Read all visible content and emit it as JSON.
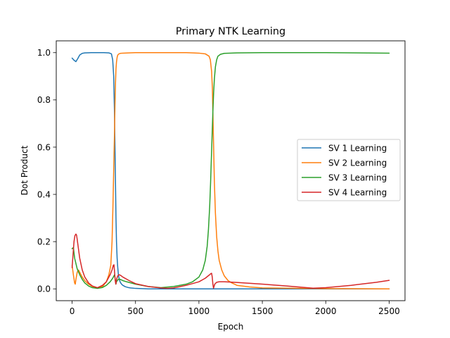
{
  "chart_data": {
    "type": "line",
    "title": "Primary NTK Learning",
    "xlabel": "Epoch",
    "ylabel": "Dot Product",
    "xlim": [
      -125,
      2625
    ],
    "ylim": [
      -0.05,
      1.05
    ],
    "xticks": [
      0,
      500,
      1000,
      1500,
      2000,
      2500
    ],
    "yticks": [
      0.0,
      0.2,
      0.4,
      0.6,
      0.8,
      1.0
    ],
    "xtick_labels": [
      "0",
      "500",
      "1000",
      "1500",
      "2000",
      "2500"
    ],
    "ytick_labels": [
      "0.0",
      "0.2",
      "0.4",
      "0.6",
      "0.8",
      "1.0"
    ],
    "grid": false,
    "legend_position": "center-right",
    "series": [
      {
        "name": "SV 1 Learning",
        "color": "#1f77b4",
        "x": [
          0,
          15,
          30,
          45,
          60,
          80,
          100,
          150,
          200,
          250,
          290,
          310,
          320,
          328,
          334,
          338,
          342,
          346,
          350,
          355,
          360,
          365,
          370,
          375,
          380,
          390,
          400,
          420,
          440,
          460,
          500,
          550,
          600,
          700,
          800,
          900,
          1000,
          1100,
          1200,
          1500,
          2000,
          2500
        ],
        "y": [
          0.977,
          0.968,
          0.962,
          0.975,
          0.99,
          0.997,
          0.999,
          1.0,
          1.0,
          1.0,
          0.999,
          0.995,
          0.97,
          0.9,
          0.75,
          0.6,
          0.45,
          0.3,
          0.2,
          0.13,
          0.09,
          0.06,
          0.045,
          0.035,
          0.028,
          0.02,
          0.015,
          0.009,
          0.006,
          0.004,
          0.002,
          0.001,
          0.0,
          0.0,
          0.0,
          0.0,
          0.0,
          0.0,
          0.0,
          0.0,
          0.0,
          0.0
        ]
      },
      {
        "name": "SV 2 Learning",
        "color": "#ff7f0e",
        "x": [
          0,
          10,
          20,
          25,
          30,
          40,
          50,
          60,
          80,
          100,
          130,
          160,
          200,
          240,
          270,
          290,
          305,
          315,
          322,
          328,
          334,
          338,
          342,
          346,
          350,
          355,
          360,
          370,
          380,
          400,
          450,
          500,
          600,
          700,
          800,
          900,
          1000,
          1050,
          1080,
          1090,
          1100,
          1106,
          1110,
          1116,
          1122,
          1130,
          1140,
          1150,
          1160,
          1180,
          1200,
          1230,
          1260,
          1300,
          1400,
          1500,
          2000,
          2500
        ],
        "y": [
          0.1,
          0.06,
          0.025,
          0.02,
          0.04,
          0.07,
          0.08,
          0.07,
          0.05,
          0.035,
          0.02,
          0.01,
          0.003,
          0.01,
          0.03,
          0.06,
          0.1,
          0.2,
          0.35,
          0.5,
          0.65,
          0.78,
          0.87,
          0.93,
          0.96,
          0.98,
          0.99,
          0.995,
          0.997,
          0.998,
          0.999,
          1.0,
          1.0,
          1.0,
          1.0,
          1.0,
          0.998,
          0.995,
          0.985,
          0.97,
          0.92,
          0.85,
          0.75,
          0.6,
          0.45,
          0.32,
          0.22,
          0.16,
          0.12,
          0.08,
          0.055,
          0.035,
          0.025,
          0.015,
          0.008,
          0.004,
          0.001,
          0.0
        ]
      },
      {
        "name": "SV 3 Learning",
        "color": "#2ca02c",
        "x": [
          0,
          10,
          20,
          40,
          60,
          80,
          100,
          130,
          160,
          200,
          240,
          270,
          300,
          320,
          330,
          335,
          340,
          345,
          350,
          360,
          370,
          380,
          400,
          430,
          500,
          600,
          700,
          800,
          900,
          950,
          1000,
          1030,
          1050,
          1065,
          1075,
          1085,
          1092,
          1098,
          1104,
          1110,
          1116,
          1122,
          1130,
          1140,
          1150,
          1170,
          1200,
          1300,
          1500,
          2000,
          2500
        ],
        "y": [
          0.17,
          0.175,
          0.13,
          0.085,
          0.06,
          0.04,
          0.025,
          0.012,
          0.005,
          0.002,
          0.006,
          0.015,
          0.03,
          0.045,
          0.055,
          0.06,
          0.04,
          0.02,
          0.03,
          0.038,
          0.042,
          0.04,
          0.035,
          0.03,
          0.02,
          0.01,
          0.005,
          0.01,
          0.02,
          0.03,
          0.05,
          0.08,
          0.12,
          0.18,
          0.25,
          0.35,
          0.45,
          0.55,
          0.65,
          0.75,
          0.83,
          0.89,
          0.94,
          0.97,
          0.985,
          0.993,
          0.997,
          0.999,
          1.0,
          1.0,
          0.998
        ]
      },
      {
        "name": "SV 4 Learning",
        "color": "#d62728",
        "x": [
          0,
          8,
          15,
          22,
          30,
          35,
          40,
          50,
          60,
          80,
          100,
          130,
          160,
          200,
          240,
          270,
          300,
          315,
          325,
          330,
          335,
          340,
          345,
          350,
          360,
          370,
          380,
          400,
          450,
          500,
          600,
          700,
          750,
          800,
          900,
          1000,
          1050,
          1080,
          1095,
          1100,
          1105,
          1110,
          1115,
          1125,
          1140,
          1160,
          1200,
          1300,
          1500,
          1700,
          1900,
          2000,
          2200,
          2400,
          2500
        ],
        "y": [
          0.09,
          0.15,
          0.2,
          0.225,
          0.232,
          0.228,
          0.21,
          0.17,
          0.13,
          0.08,
          0.05,
          0.025,
          0.012,
          0.005,
          0.015,
          0.03,
          0.06,
          0.08,
          0.1,
          0.102,
          0.07,
          0.035,
          0.02,
          0.04,
          0.055,
          0.06,
          0.058,
          0.05,
          0.035,
          0.022,
          0.01,
          0.004,
          0.002,
          0.004,
          0.015,
          0.03,
          0.045,
          0.058,
          0.065,
          0.066,
          0.05,
          0.02,
          0.003,
          0.02,
          0.028,
          0.03,
          0.03,
          0.027,
          0.02,
          0.012,
          0.003,
          0.005,
          0.015,
          0.028,
          0.036
        ]
      }
    ]
  }
}
